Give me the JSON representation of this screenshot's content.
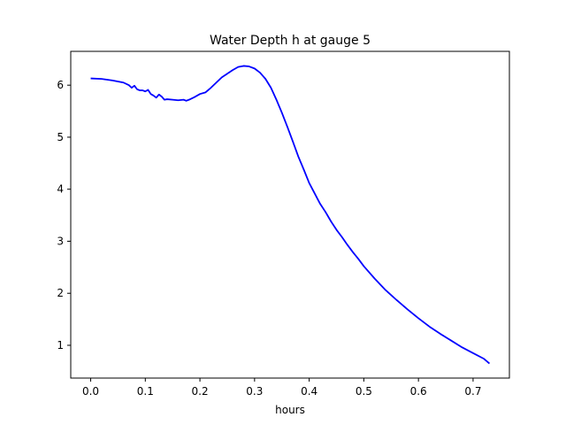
{
  "chart_data": {
    "type": "line",
    "title": "Water Depth h at gauge 5",
    "xlabel": "hours",
    "ylabel": "",
    "xlim": [
      -0.0365,
      0.7665
    ],
    "ylim": [
      0.37,
      6.65
    ],
    "xticks": [
      0.0,
      0.1,
      0.2,
      0.3,
      0.4,
      0.5,
      0.6,
      0.7
    ],
    "xtick_labels": [
      "0.0",
      "0.1",
      "0.2",
      "0.3",
      "0.4",
      "0.5",
      "0.6",
      "0.7"
    ],
    "yticks": [
      1,
      2,
      3,
      4,
      5,
      6
    ],
    "ytick_labels": [
      "1",
      "2",
      "3",
      "4",
      "5",
      "6"
    ],
    "grid": false,
    "legend": "none",
    "series": [
      {
        "color": "#0000ff",
        "x": [
          0.0,
          0.02,
          0.04,
          0.06,
          0.07,
          0.075,
          0.08,
          0.085,
          0.09,
          0.095,
          0.1,
          0.105,
          0.11,
          0.115,
          0.12,
          0.125,
          0.13,
          0.135,
          0.14,
          0.15,
          0.16,
          0.17,
          0.175,
          0.18,
          0.19,
          0.2,
          0.21,
          0.22,
          0.23,
          0.24,
          0.25,
          0.26,
          0.27,
          0.28,
          0.29,
          0.3,
          0.31,
          0.32,
          0.33,
          0.34,
          0.35,
          0.36,
          0.37,
          0.38,
          0.39,
          0.4,
          0.41,
          0.42,
          0.43,
          0.44,
          0.45,
          0.46,
          0.47,
          0.48,
          0.49,
          0.5,
          0.52,
          0.54,
          0.56,
          0.58,
          0.6,
          0.62,
          0.64,
          0.66,
          0.68,
          0.7,
          0.72,
          0.73
        ],
        "y": [
          6.13,
          6.12,
          6.09,
          6.05,
          6.0,
          5.95,
          5.99,
          5.92,
          5.9,
          5.9,
          5.88,
          5.91,
          5.83,
          5.8,
          5.76,
          5.82,
          5.78,
          5.72,
          5.73,
          5.72,
          5.71,
          5.72,
          5.7,
          5.72,
          5.77,
          5.83,
          5.86,
          5.95,
          6.05,
          6.15,
          6.22,
          6.29,
          6.35,
          6.37,
          6.36,
          6.32,
          6.24,
          6.12,
          5.95,
          5.72,
          5.47,
          5.2,
          4.92,
          4.63,
          4.38,
          4.12,
          3.92,
          3.72,
          3.56,
          3.38,
          3.22,
          3.08,
          2.93,
          2.79,
          2.66,
          2.52,
          2.28,
          2.06,
          1.87,
          1.69,
          1.52,
          1.36,
          1.22,
          1.09,
          0.96,
          0.85,
          0.74,
          0.65
        ]
      }
    ]
  }
}
